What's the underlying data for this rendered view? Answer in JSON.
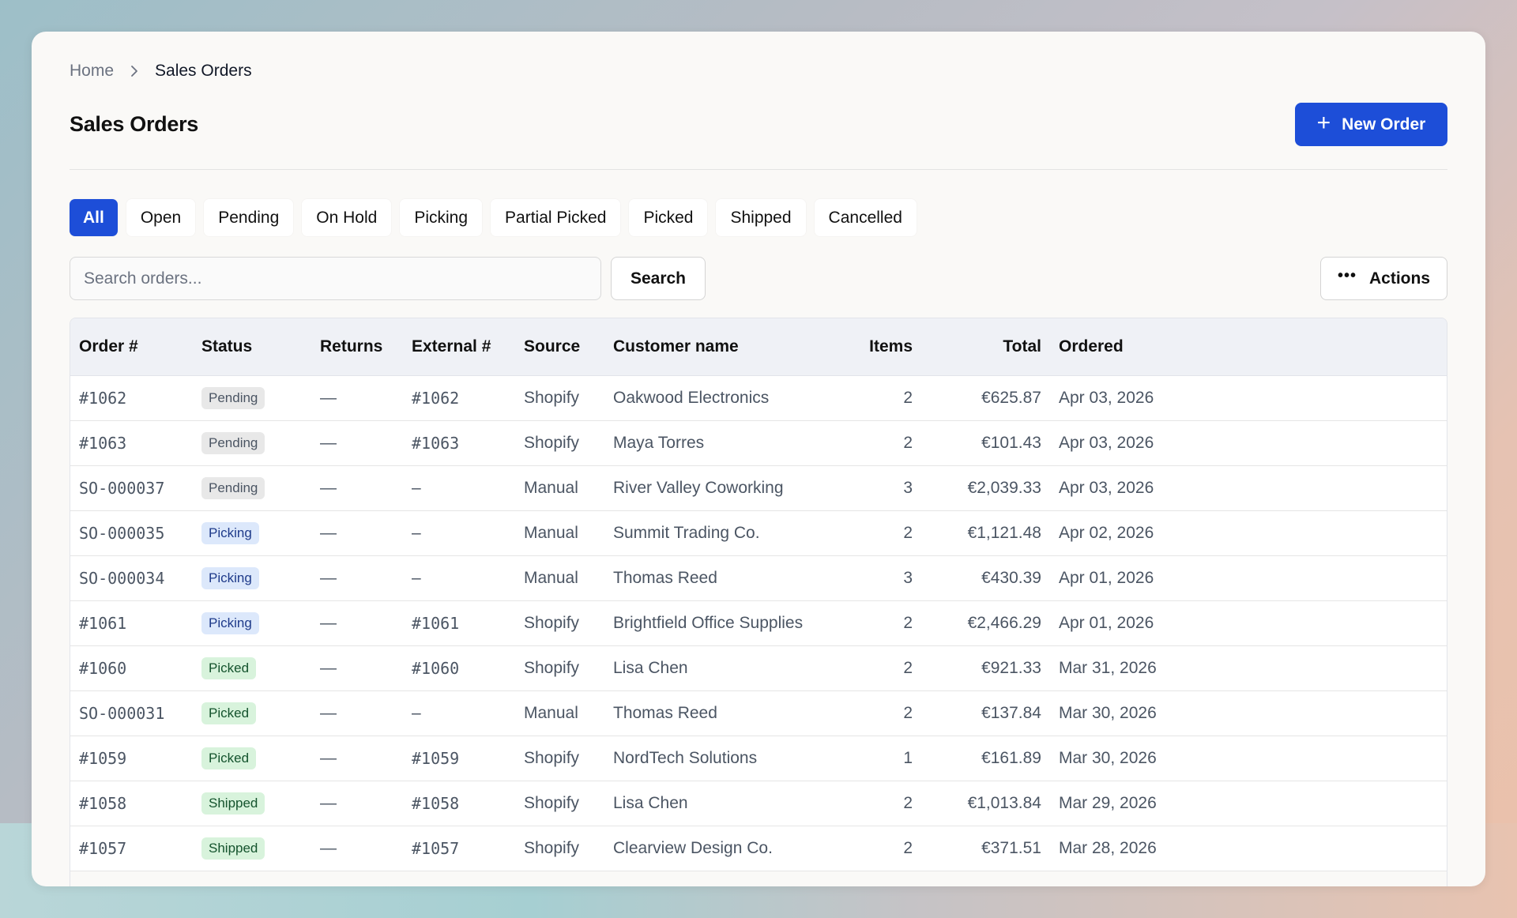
{
  "breadcrumb": {
    "home": "Home",
    "current": "Sales Orders"
  },
  "page": {
    "title": "Sales Orders",
    "new_order_label": "New Order"
  },
  "tabs": [
    "All",
    "Open",
    "Pending",
    "On Hold",
    "Picking",
    "Partial Picked",
    "Picked",
    "Shipped",
    "Cancelled"
  ],
  "active_tab": "All",
  "search": {
    "placeholder": "Search orders...",
    "button_label": "Search"
  },
  "actions_label": "Actions",
  "table": {
    "headers": [
      "Order #",
      "Status",
      "Returns",
      "External #",
      "Source",
      "Customer name",
      "Items",
      "Total",
      "Ordered"
    ],
    "rows": [
      [
        "#1062",
        "Pending",
        "—",
        "#1062",
        "Shopify",
        "Oakwood Electronics",
        "2",
        "€625.87",
        "Apr 03, 2026"
      ],
      [
        "#1063",
        "Pending",
        "—",
        "#1063",
        "Shopify",
        "Maya Torres",
        "2",
        "€101.43",
        "Apr 03, 2026"
      ],
      [
        "SO-000037",
        "Pending",
        "—",
        "–",
        "Manual",
        "River Valley Coworking",
        "3",
        "€2,039.33",
        "Apr 03, 2026"
      ],
      [
        "SO-000035",
        "Picking",
        "—",
        "–",
        "Manual",
        "Summit Trading Co.",
        "2",
        "€1,121.48",
        "Apr 02, 2026"
      ],
      [
        "SO-000034",
        "Picking",
        "—",
        "–",
        "Manual",
        "Thomas Reed",
        "3",
        "€430.39",
        "Apr 01, 2026"
      ],
      [
        "#1061",
        "Picking",
        "—",
        "#1061",
        "Shopify",
        "Brightfield Office Supplies",
        "2",
        "€2,466.29",
        "Apr 01, 2026"
      ],
      [
        "#1060",
        "Picked",
        "—",
        "#1060",
        "Shopify",
        "Lisa Chen",
        "2",
        "€921.33",
        "Mar 31, 2026"
      ],
      [
        "SO-000031",
        "Picked",
        "—",
        "–",
        "Manual",
        "Thomas Reed",
        "2",
        "€137.84",
        "Mar 30, 2026"
      ],
      [
        "#1059",
        "Picked",
        "—",
        "#1059",
        "Shopify",
        "NordTech Solutions",
        "1",
        "€161.89",
        "Mar 30, 2026"
      ],
      [
        "#1058",
        "Shipped",
        "—",
        "#1058",
        "Shopify",
        "Lisa Chen",
        "2",
        "€1,013.84",
        "Mar 29, 2026"
      ],
      [
        "#1057",
        "Shipped",
        "—",
        "#1057",
        "Shopify",
        "Clearview Design Co.",
        "2",
        "€371.51",
        "Mar 28, 2026"
      ]
    ]
  },
  "colors": {
    "accent": "#1d4ed8",
    "pending_bg": "#e8e8e8",
    "picking_bg": "#dce8fb",
    "picked_bg": "#d8f3dc",
    "shipped_bg": "#d8f3dc"
  }
}
